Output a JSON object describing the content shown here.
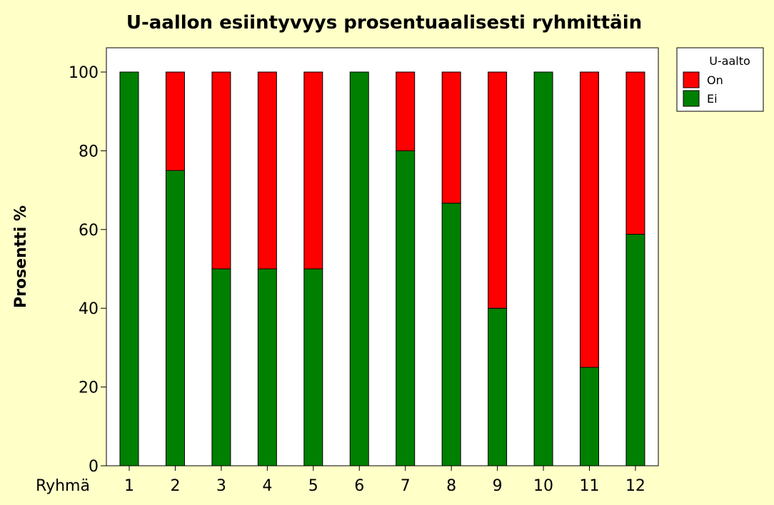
{
  "chart_data": {
    "type": "bar",
    "stacked": true,
    "title": "U-aallon esiintyvyys prosentuaalisesti ryhmittäin",
    "ylabel": "Prosentti %",
    "xlabel": "Ryhmä",
    "ylim": [
      0,
      100
    ],
    "yticks": [
      0,
      20,
      40,
      60,
      80,
      100
    ],
    "grid": false,
    "legend_position": "top-right",
    "legend_title": "U-aalto",
    "categories": [
      "1",
      "2",
      "3",
      "4",
      "5",
      "6",
      "7",
      "8",
      "9",
      "10",
      "11",
      "12"
    ],
    "series": [
      {
        "name": "Ei",
        "color": "#008000",
        "values": [
          100,
          75,
          50,
          50,
          50,
          100,
          80,
          66.7,
          40,
          100,
          25,
          58.8
        ]
      },
      {
        "name": "On",
        "color": "#ff0000",
        "values": [
          0,
          25,
          50,
          50,
          50,
          0,
          20,
          33.3,
          60,
          0,
          75,
          41.2
        ]
      }
    ]
  }
}
